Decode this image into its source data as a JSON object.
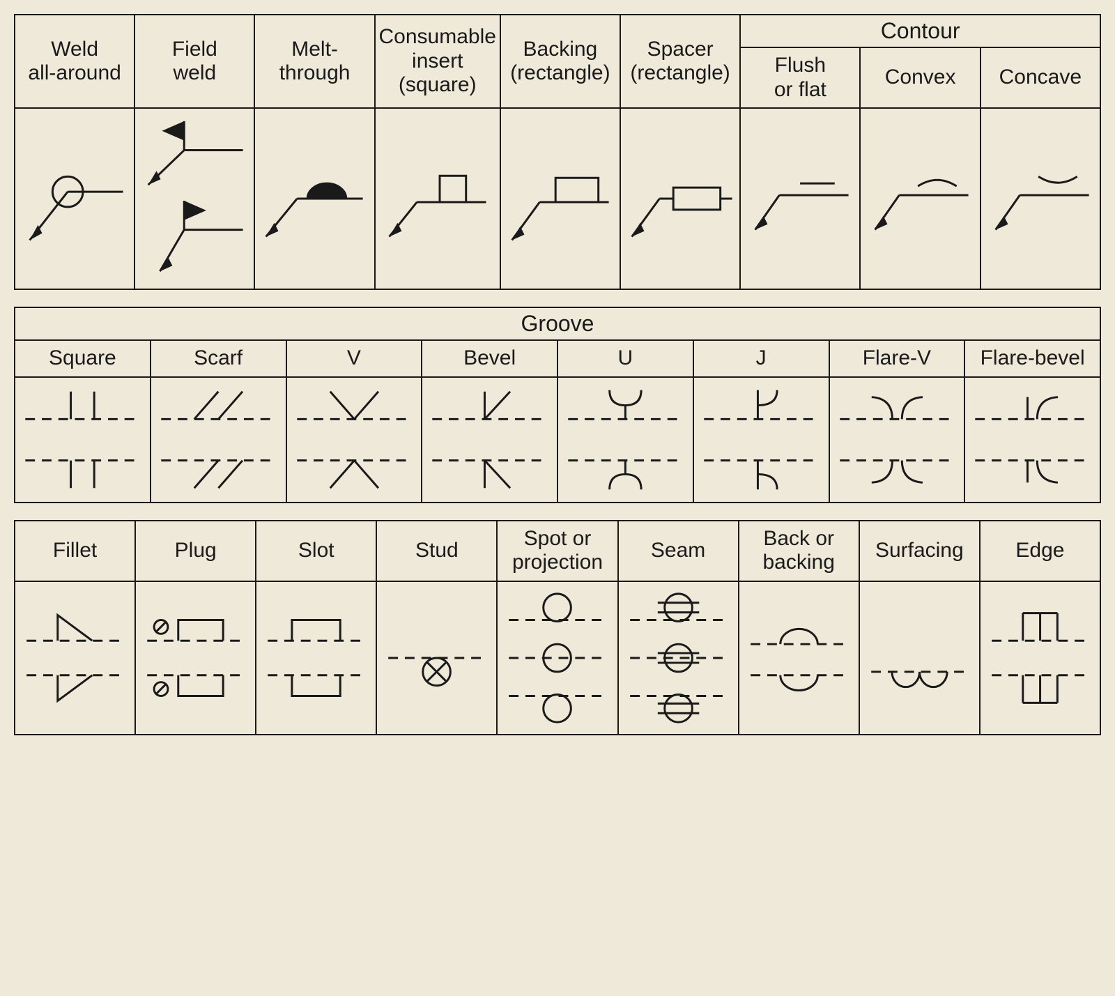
{
  "colors": {
    "bg": "#efe9da",
    "stroke": "#1a1a1a",
    "fill": "#1a1a1a"
  },
  "stroke_width": {
    "main": 3,
    "dash": 3
  },
  "dash_pattern": "14 10",
  "table1": {
    "contour_header": "Contour",
    "cols": [
      {
        "label": "Weld\nall-around",
        "width_pct": 11.1
      },
      {
        "label": "Field\nweld",
        "width_pct": 11.1
      },
      {
        "label": "Melt-\nthrough",
        "width_pct": 11.1
      },
      {
        "label": "Consumable\ninsert\n(square)",
        "width_pct": 11.1
      },
      {
        "label": "Backing\n(rectangle)",
        "width_pct": 11.1
      },
      {
        "label": "Spacer\n(rectangle)",
        "width_pct": 11.1
      },
      {
        "label": "Flush\nor flat",
        "width_pct": 11.1
      },
      {
        "label": "Convex",
        "width_pct": 11.1
      },
      {
        "label": "Concave",
        "width_pct": 11.1
      }
    ],
    "row_h_header": 110,
    "row_h_sym": 260
  },
  "table2": {
    "title": "Groove",
    "cols": [
      {
        "label": "Square"
      },
      {
        "label": "Scarf"
      },
      {
        "label": "V"
      },
      {
        "label": "Bevel"
      },
      {
        "label": "U"
      },
      {
        "label": "J"
      },
      {
        "label": "Flare-V"
      },
      {
        "label": "Flare-bevel"
      }
    ],
    "row_h_title": 50,
    "row_h_header": 60,
    "row_h_sym": 180
  },
  "table3": {
    "cols": [
      {
        "label": "Fillet"
      },
      {
        "label": "Plug"
      },
      {
        "label": "Slot"
      },
      {
        "label": "Stud"
      },
      {
        "label": "Spot or\nprojection"
      },
      {
        "label": "Seam"
      },
      {
        "label": "Back or\nbacking"
      },
      {
        "label": "Surfacing"
      },
      {
        "label": "Edge"
      }
    ],
    "row_h_header": 100,
    "row_h_sym": 220
  }
}
